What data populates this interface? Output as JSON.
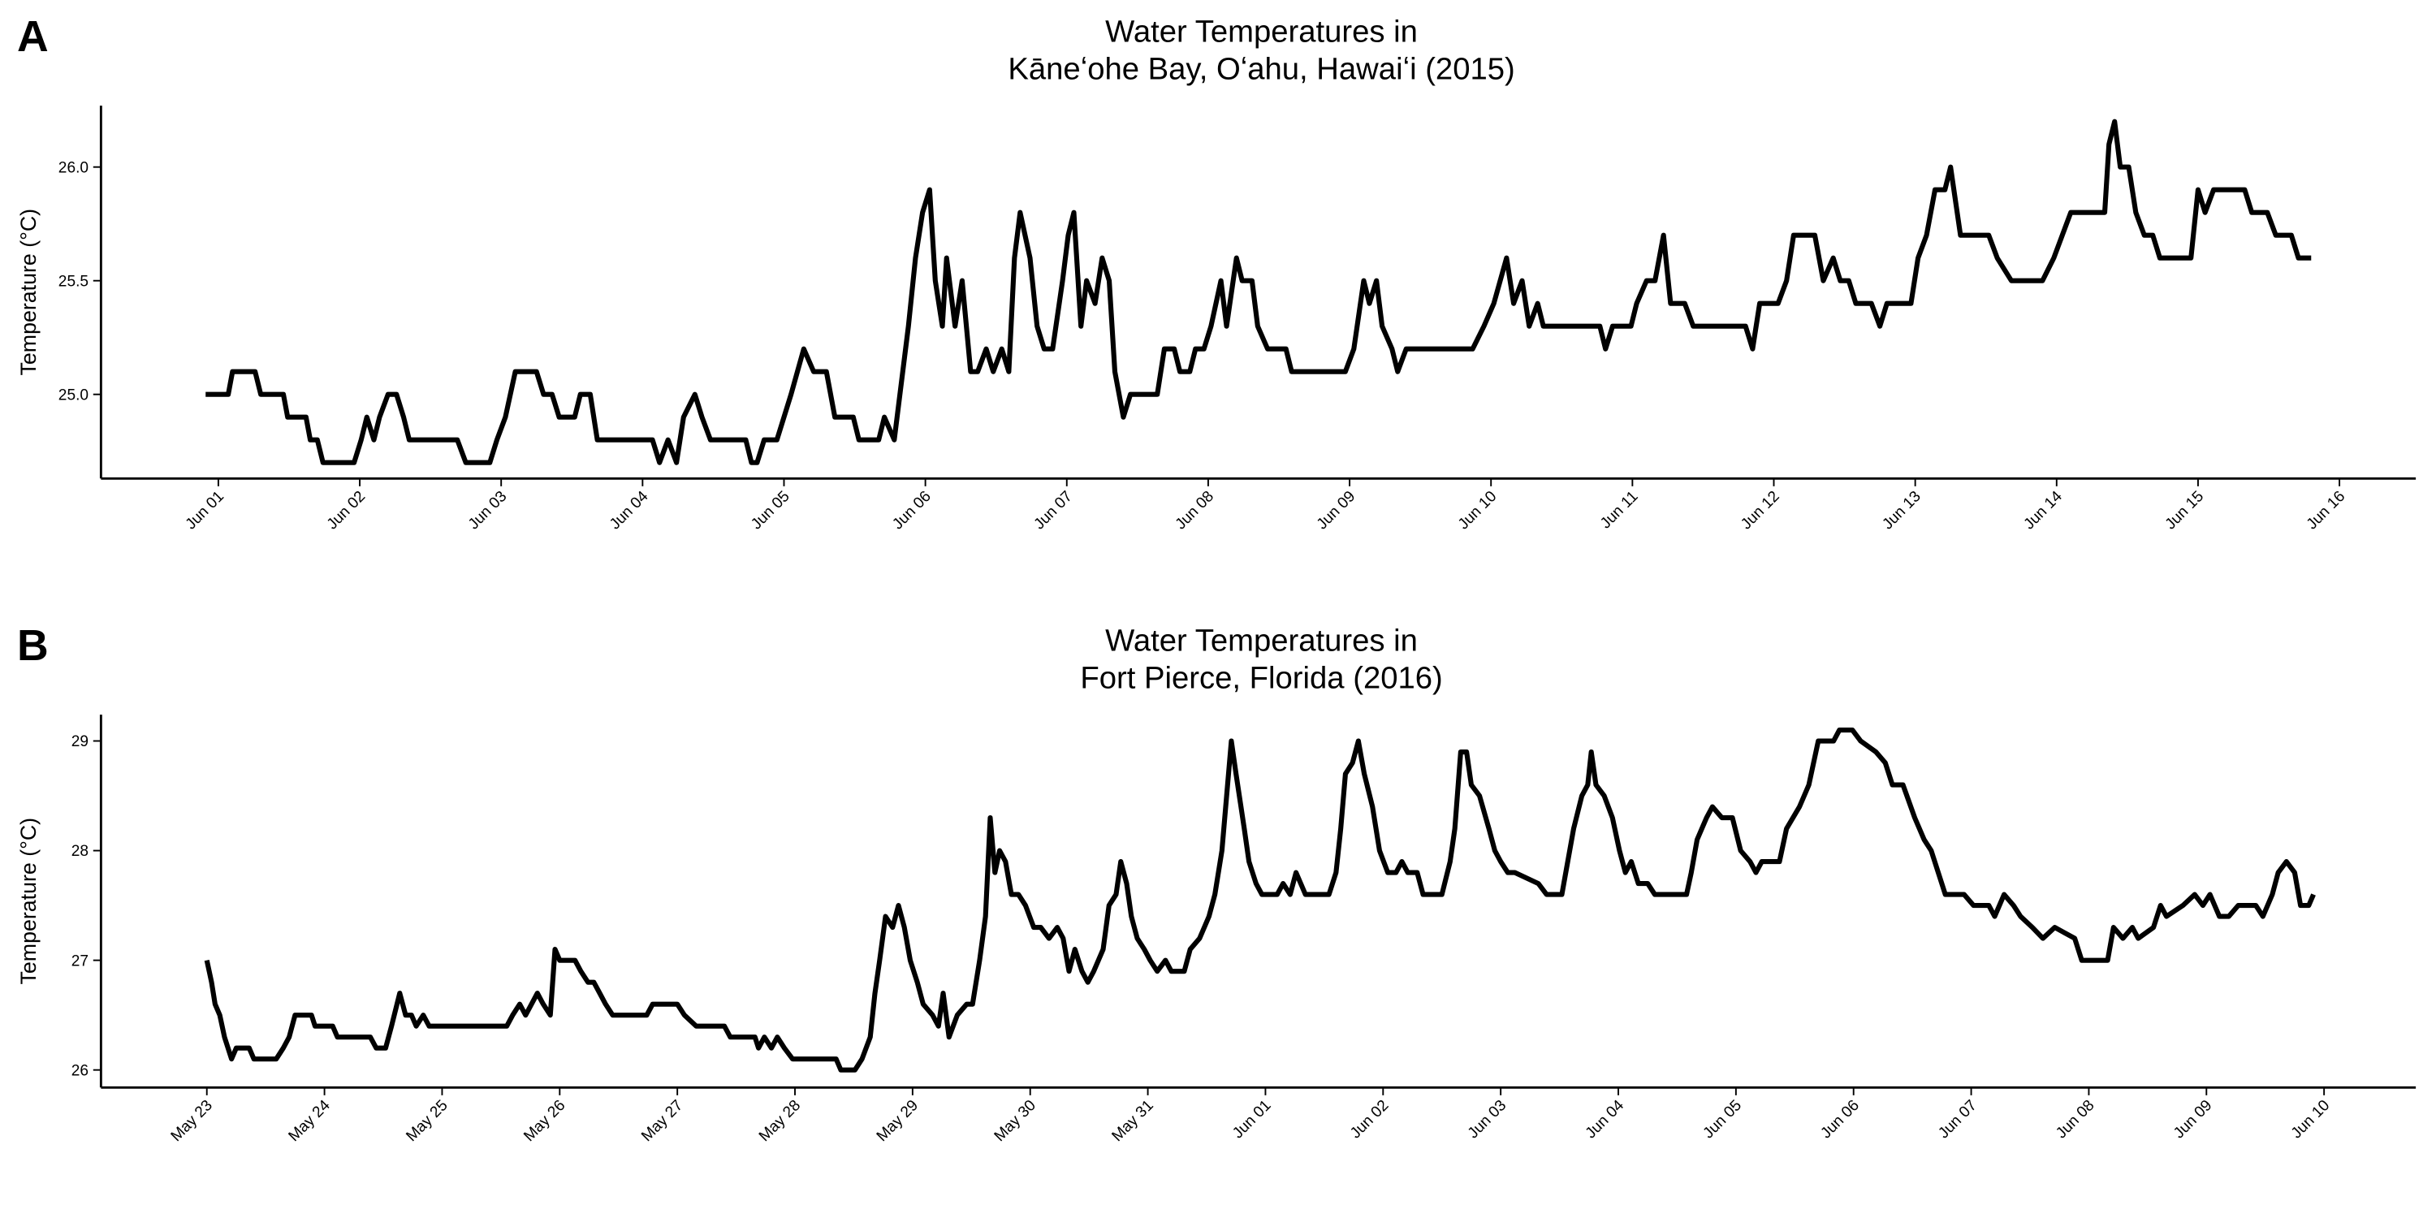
{
  "chart_data": [
    {
      "type": "line",
      "panel_label": "A",
      "title": "Water Temperatures in",
      "subtitle": "Kāneʻohe Bay, Oʻahu, Hawaiʻi (2015)",
      "y_label": "Temperature (°C)",
      "color": "#000000",
      "xlim": [
        0.17,
        16.54
      ],
      "ylim": [
        24.63,
        26.27
      ],
      "xticks": [
        {
          "value": 1,
          "label": "Jun 01"
        },
        {
          "value": 2,
          "label": "Jun 02"
        },
        {
          "value": 3,
          "label": "Jun 03"
        },
        {
          "value": 4,
          "label": "Jun 04"
        },
        {
          "value": 5,
          "label": "Jun 05"
        },
        {
          "value": 6,
          "label": "Jun 06"
        },
        {
          "value": 7,
          "label": "Jun 07"
        },
        {
          "value": 8,
          "label": "Jun 08"
        },
        {
          "value": 9,
          "label": "Jun 09"
        },
        {
          "value": 10,
          "label": "Jun 10"
        },
        {
          "value": 11,
          "label": "Jun 11"
        },
        {
          "value": 12,
          "label": "Jun 12"
        },
        {
          "value": 13,
          "label": "Jun 13"
        },
        {
          "value": 14,
          "label": "Jun 14"
        },
        {
          "value": 15,
          "label": "Jun 15"
        },
        {
          "value": 16,
          "label": "Jun 16"
        }
      ],
      "yticks": [
        {
          "value": 25,
          "label": "25.0"
        },
        {
          "value": 25.5,
          "label": "25.5"
        },
        {
          "value": 26,
          "label": "26.0"
        }
      ],
      "x": [
        0.91,
        1.07,
        1.1,
        1.26,
        1.3,
        1.46,
        1.49,
        1.62,
        1.65,
        1.7,
        1.74,
        1.96,
        2.01,
        2.05,
        2.1,
        2.14,
        2.2,
        2.26,
        2.31,
        2.35,
        2.69,
        2.75,
        2.92,
        2.97,
        3.03,
        3.1,
        3.25,
        3.3,
        3.36,
        3.41,
        3.52,
        3.56,
        3.63,
        3.68,
        4.07,
        4.12,
        4.18,
        4.24,
        4.29,
        4.37,
        4.42,
        4.48,
        4.73,
        4.77,
        4.81,
        4.86,
        4.95,
        5.05,
        5.14,
        5.21,
        5.3,
        5.36,
        5.49,
        5.53,
        5.67,
        5.71,
        5.78,
        5.82,
        5.88,
        5.93,
        5.98,
        6.03,
        6.07,
        6.12,
        6.15,
        6.21,
        6.26,
        6.32,
        6.37,
        6.43,
        6.48,
        6.54,
        6.59,
        6.63,
        6.67,
        6.74,
        6.79,
        6.84,
        6.9,
        6.97,
        7.01,
        7.05,
        7.1,
        7.14,
        7.2,
        7.25,
        7.3,
        7.34,
        7.4,
        7.45,
        7.64,
        7.69,
        7.76,
        7.8,
        7.87,
        7.91,
        7.97,
        8.02,
        8.09,
        8.13,
        8.2,
        8.24,
        8.31,
        8.35,
        8.42,
        8.55,
        8.59,
        8.97,
        9.03,
        9.1,
        9.14,
        9.19,
        9.23,
        9.3,
        9.34,
        9.4,
        9.87,
        9.95,
        10.02,
        10.11,
        10.16,
        10.22,
        10.27,
        10.33,
        10.37,
        10.77,
        10.81,
        10.86,
        10.99,
        11.03,
        11.1,
        11.16,
        11.22,
        11.27,
        11.37,
        11.43,
        11.8,
        11.85,
        11.9,
        12.03,
        12.09,
        12.14,
        12.29,
        12.35,
        12.42,
        12.47,
        12.53,
        12.58,
        12.69,
        12.75,
        12.8,
        12.97,
        13.02,
        13.08,
        13.14,
        13.21,
        13.25,
        13.32,
        13.52,
        13.58,
        13.68,
        13.9,
        13.98,
        14.04,
        14.1,
        14.34,
        14.37,
        14.41,
        14.45,
        14.51,
        14.56,
        14.62,
        14.68,
        14.73,
        14.95,
        15.0,
        15.05,
        15.11,
        15.33,
        15.38,
        15.49,
        15.55,
        15.66,
        15.71,
        15.8
      ],
      "values": [
        25.0,
        25.0,
        25.1,
        25.1,
        25.0,
        25.0,
        24.9,
        24.9,
        24.8,
        24.8,
        24.7,
        24.7,
        24.8,
        24.9,
        24.8,
        24.9,
        25.0,
        25.0,
        24.9,
        24.8,
        24.8,
        24.7,
        24.7,
        24.8,
        24.9,
        25.1,
        25.1,
        25.0,
        25.0,
        24.9,
        24.9,
        25.0,
        25.0,
        24.8,
        24.8,
        24.7,
        24.8,
        24.7,
        24.9,
        25.0,
        24.9,
        24.8,
        24.8,
        24.7,
        24.7,
        24.8,
        24.8,
        25.0,
        25.2,
        25.1,
        25.1,
        24.9,
        24.9,
        24.8,
        24.8,
        24.9,
        24.8,
        25.0,
        25.3,
        25.6,
        25.8,
        25.9,
        25.5,
        25.3,
        25.6,
        25.3,
        25.5,
        25.1,
        25.1,
        25.2,
        25.1,
        25.2,
        25.1,
        25.6,
        25.8,
        25.6,
        25.3,
        25.2,
        25.2,
        25.5,
        25.7,
        25.8,
        25.3,
        25.5,
        25.4,
        25.6,
        25.5,
        25.1,
        24.9,
        25.0,
        25.0,
        25.2,
        25.2,
        25.1,
        25.1,
        25.2,
        25.2,
        25.3,
        25.5,
        25.3,
        25.6,
        25.5,
        25.5,
        25.3,
        25.2,
        25.2,
        25.1,
        25.1,
        25.2,
        25.5,
        25.4,
        25.5,
        25.3,
        25.2,
        25.1,
        25.2,
        25.2,
        25.3,
        25.4,
        25.6,
        25.4,
        25.5,
        25.3,
        25.4,
        25.3,
        25.3,
        25.2,
        25.3,
        25.3,
        25.4,
        25.5,
        25.5,
        25.7,
        25.4,
        25.4,
        25.3,
        25.3,
        25.2,
        25.4,
        25.4,
        25.5,
        25.7,
        25.7,
        25.5,
        25.6,
        25.5,
        25.5,
        25.4,
        25.4,
        25.3,
        25.4,
        25.4,
        25.6,
        25.7,
        25.9,
        25.9,
        26.0,
        25.7,
        25.7,
        25.6,
        25.5,
        25.5,
        25.6,
        25.7,
        25.8,
        25.8,
        26.1,
        26.2,
        26.0,
        26.0,
        25.8,
        25.7,
        25.7,
        25.6,
        25.6,
        25.9,
        25.8,
        25.9,
        25.9,
        25.8,
        25.8,
        25.7,
        25.7,
        25.6,
        25.6
      ]
    },
    {
      "type": "line",
      "panel_label": "B",
      "title": "Water Temperatures in",
      "subtitle": "Fort Pierce, Florida (2016)",
      "y_label": "Temperature (°C)",
      "color": "#000000",
      "xlim": [
        22.1,
        41.78
      ],
      "ylim": [
        25.84,
        29.24
      ],
      "xticks": [
        {
          "value": 23,
          "label": "May 23"
        },
        {
          "value": 24,
          "label": "May 24"
        },
        {
          "value": 25,
          "label": "May 25"
        },
        {
          "value": 26,
          "label": "May 26"
        },
        {
          "value": 27,
          "label": "May 27"
        },
        {
          "value": 28,
          "label": "May 28"
        },
        {
          "value": 29,
          "label": "May 29"
        },
        {
          "value": 30,
          "label": "May 30"
        },
        {
          "value": 31,
          "label": "May 31"
        },
        {
          "value": 32,
          "label": "Jun 01"
        },
        {
          "value": 33,
          "label": "Jun 02"
        },
        {
          "value": 34,
          "label": "Jun 03"
        },
        {
          "value": 35,
          "label": "Jun 04"
        },
        {
          "value": 36,
          "label": "Jun 05"
        },
        {
          "value": 37,
          "label": "Jun 06"
        },
        {
          "value": 38,
          "label": "Jun 07"
        },
        {
          "value": 39,
          "label": "Jun 08"
        },
        {
          "value": 40,
          "label": "Jun 09"
        },
        {
          "value": 41,
          "label": "Jun 10"
        }
      ],
      "yticks": [
        26,
        27,
        28,
        29
      ],
      "x": [
        23.0,
        23.04,
        23.07,
        23.11,
        23.15,
        23.18,
        23.21,
        23.25,
        23.36,
        23.4,
        23.59,
        23.65,
        23.7,
        23.75,
        23.89,
        23.92,
        24.07,
        24.11,
        24.39,
        24.44,
        24.52,
        24.57,
        24.64,
        24.69,
        24.74,
        24.78,
        24.84,
        24.89,
        25.55,
        25.6,
        25.66,
        25.71,
        25.76,
        25.81,
        25.86,
        25.92,
        25.96,
        26.0,
        26.13,
        26.18,
        26.24,
        26.29,
        26.34,
        26.39,
        26.45,
        26.74,
        26.79,
        27.0,
        27.06,
        27.16,
        27.4,
        27.45,
        27.66,
        27.69,
        27.74,
        27.8,
        27.85,
        27.91,
        27.98,
        28.35,
        28.39,
        28.51,
        28.57,
        28.64,
        28.68,
        28.72,
        28.77,
        28.83,
        28.88,
        28.93,
        28.98,
        29.04,
        29.09,
        29.17,
        29.22,
        29.26,
        29.31,
        29.38,
        29.46,
        29.51,
        29.57,
        29.62,
        29.66,
        29.7,
        29.74,
        29.79,
        29.84,
        29.9,
        29.96,
        30.03,
        30.09,
        30.16,
        30.23,
        30.28,
        30.33,
        30.38,
        30.44,
        30.49,
        30.54,
        30.62,
        30.67,
        30.73,
        30.77,
        30.82,
        30.86,
        30.91,
        30.97,
        31.02,
        31.08,
        31.15,
        31.2,
        31.31,
        31.36,
        31.44,
        31.52,
        31.57,
        31.63,
        31.67,
        31.71,
        31.75,
        31.82,
        31.86,
        31.92,
        31.97,
        32.1,
        32.15,
        32.21,
        32.26,
        32.34,
        32.54,
        32.6,
        32.64,
        32.68,
        32.74,
        32.79,
        32.84,
        32.91,
        32.97,
        33.04,
        33.11,
        33.16,
        33.21,
        33.29,
        33.34,
        33.5,
        33.57,
        33.61,
        33.66,
        33.71,
        33.75,
        33.82,
        33.9,
        33.95,
        34.0,
        34.06,
        34.12,
        34.32,
        34.39,
        34.52,
        34.57,
        34.62,
        34.69,
        34.74,
        34.77,
        34.81,
        34.88,
        34.95,
        35.01,
        35.06,
        35.11,
        35.17,
        35.25,
        35.31,
        35.58,
        35.62,
        35.67,
        35.75,
        35.8,
        35.88,
        35.97,
        36.04,
        36.12,
        36.17,
        36.22,
        36.37,
        36.43,
        36.54,
        36.62,
        36.7,
        36.83,
        36.88,
        36.99,
        37.06,
        37.19,
        37.27,
        37.33,
        37.42,
        37.52,
        37.6,
        37.66,
        37.72,
        37.78,
        37.94,
        38.02,
        38.15,
        38.2,
        38.28,
        38.36,
        38.42,
        38.52,
        38.61,
        38.71,
        38.88,
        38.94,
        39.16,
        39.21,
        39.29,
        39.37,
        39.42,
        39.55,
        39.61,
        39.66,
        39.8,
        39.9,
        39.97,
        40.03,
        40.11,
        40.19,
        40.27,
        40.42,
        40.48,
        40.56,
        40.61,
        40.68,
        40.75,
        40.8,
        40.87,
        40.91
      ],
      "values": [
        27.0,
        26.8,
        26.6,
        26.5,
        26.3,
        26.2,
        26.1,
        26.2,
        26.2,
        26.1,
        26.1,
        26.2,
        26.3,
        26.5,
        26.5,
        26.4,
        26.4,
        26.3,
        26.3,
        26.2,
        26.2,
        26.4,
        26.7,
        26.5,
        26.5,
        26.4,
        26.5,
        26.4,
        26.4,
        26.5,
        26.6,
        26.5,
        26.6,
        26.7,
        26.6,
        26.5,
        27.1,
        27.0,
        27.0,
        26.9,
        26.8,
        26.8,
        26.7,
        26.6,
        26.5,
        26.5,
        26.6,
        26.6,
        26.5,
        26.4,
        26.4,
        26.3,
        26.3,
        26.2,
        26.3,
        26.2,
        26.3,
        26.2,
        26.1,
        26.1,
        26.0,
        26.0,
        26.1,
        26.3,
        26.7,
        27.0,
        27.4,
        27.3,
        27.5,
        27.3,
        27.0,
        26.8,
        26.6,
        26.5,
        26.4,
        26.7,
        26.3,
        26.5,
        26.6,
        26.6,
        27.0,
        27.4,
        28.3,
        27.8,
        28.0,
        27.9,
        27.6,
        27.6,
        27.5,
        27.3,
        27.3,
        27.2,
        27.3,
        27.2,
        26.9,
        27.1,
        26.9,
        26.8,
        26.9,
        27.1,
        27.5,
        27.6,
        27.9,
        27.7,
        27.4,
        27.2,
        27.1,
        27.0,
        26.9,
        27.0,
        26.9,
        26.9,
        27.1,
        27.2,
        27.4,
        27.6,
        28.0,
        28.5,
        29.0,
        28.7,
        28.2,
        27.9,
        27.7,
        27.6,
        27.6,
        27.7,
        27.6,
        27.8,
        27.6,
        27.6,
        27.8,
        28.2,
        28.7,
        28.8,
        29.0,
        28.7,
        28.4,
        28.0,
        27.8,
        27.8,
        27.9,
        27.8,
        27.8,
        27.6,
        27.6,
        27.9,
        28.2,
        28.9,
        28.9,
        28.6,
        28.5,
        28.2,
        28.0,
        27.9,
        27.8,
        27.8,
        27.7,
        27.6,
        27.6,
        27.9,
        28.2,
        28.5,
        28.6,
        28.9,
        28.6,
        28.5,
        28.3,
        28.0,
        27.8,
        27.9,
        27.7,
        27.7,
        27.6,
        27.6,
        27.8,
        28.1,
        28.3,
        28.4,
        28.3,
        28.3,
        28.0,
        27.9,
        27.8,
        27.9,
        27.9,
        28.2,
        28.4,
        28.6,
        29.0,
        29.0,
        29.1,
        29.1,
        29.0,
        28.9,
        28.8,
        28.6,
        28.6,
        28.3,
        28.1,
        28.0,
        27.8,
        27.6,
        27.6,
        27.5,
        27.5,
        27.4,
        27.6,
        27.5,
        27.4,
        27.3,
        27.2,
        27.3,
        27.2,
        27.0,
        27.0,
        27.3,
        27.2,
        27.3,
        27.2,
        27.3,
        27.5,
        27.4,
        27.5,
        27.6,
        27.5,
        27.6,
        27.4,
        27.4,
        27.5,
        27.5,
        27.4,
        27.6,
        27.8,
        27.9,
        27.8,
        27.5,
        27.5,
        27.6
      ]
    }
  ]
}
